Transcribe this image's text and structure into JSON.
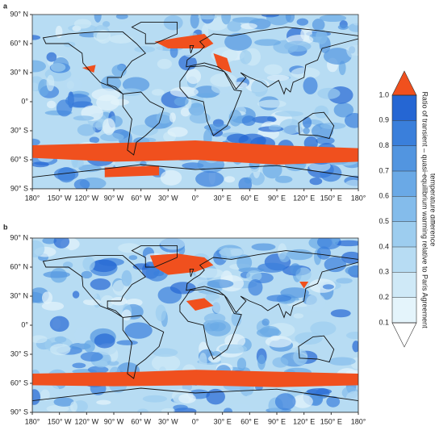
{
  "panels": [
    {
      "label": "a"
    },
    {
      "label": "b"
    }
  ],
  "lat_ticks": [
    {
      "value": 90,
      "label": "90° N"
    },
    {
      "value": 60,
      "label": "60° N"
    },
    {
      "value": 30,
      "label": "30° N"
    },
    {
      "value": 0,
      "label": "0°"
    },
    {
      "value": -30,
      "label": "30° S"
    },
    {
      "value": -60,
      "label": "60° S"
    },
    {
      "value": -90,
      "label": "90° S"
    }
  ],
  "lon_ticks": [
    {
      "value": -180,
      "label": "180°"
    },
    {
      "value": -150,
      "label": "150° W"
    },
    {
      "value": -120,
      "label": "120° W"
    },
    {
      "value": -90,
      "label": "90° W"
    },
    {
      "value": -60,
      "label": "60° W"
    },
    {
      "value": -30,
      "label": "30° W"
    },
    {
      "value": 0,
      "label": "0°"
    },
    {
      "value": 30,
      "label": "30° E"
    },
    {
      "value": 60,
      "label": "60° E"
    },
    {
      "value": 90,
      "label": "90° E"
    },
    {
      "value": 120,
      "label": "120° E"
    },
    {
      "value": 150,
      "label": "150° E"
    },
    {
      "value": 180,
      "label": "180°"
    }
  ],
  "colorbar": {
    "label_lines": [
      "Ratio of transient – quasi-equilibrium warming relative to Paris Agreement",
      "temperature difference"
    ],
    "ticks": [
      0.1,
      0.2,
      0.3,
      0.4,
      0.5,
      0.6,
      0.7,
      0.8,
      0.9,
      {
        "value": 1,
        "label": "1.0"
      }
    ],
    "colors": [
      "#e4f4fb",
      "#cfe9f7",
      "#b7dcf3",
      "#9dcdef",
      "#84bceb",
      "#6aa9e6",
      "#5295e0",
      "#3a7fdb",
      "#2566d3"
    ],
    "under_color": "#ffffff",
    "over_color": "#f0501e"
  }
}
